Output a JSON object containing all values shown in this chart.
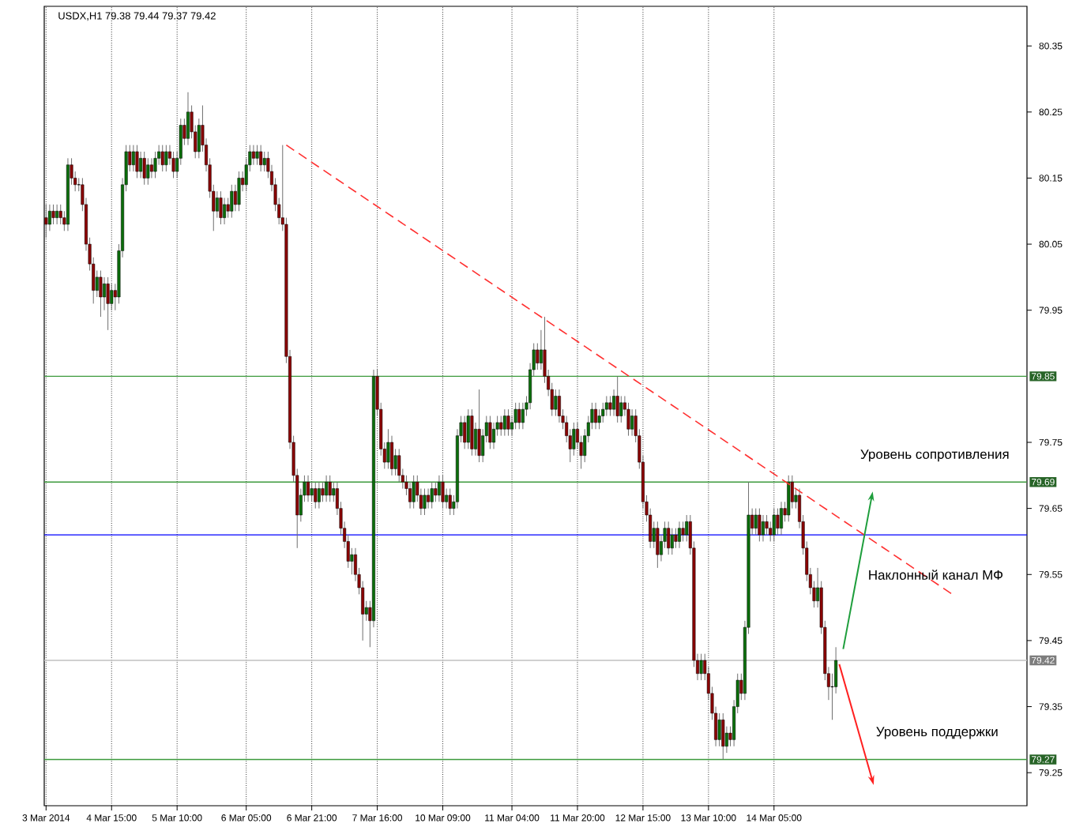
{
  "chart_data": {
    "type": "candlestick",
    "title": "USDX,H1  79.38 79.44 79.37 79.42",
    "categories": [
      "3 Mar 2014",
      null,
      null,
      null,
      null,
      null,
      null,
      null,
      null,
      null,
      null,
      null,
      null,
      null,
      null,
      null,
      null,
      null,
      "4 Mar 15:00",
      null,
      null,
      null,
      null,
      null,
      null,
      null,
      null,
      null,
      null,
      null,
      null,
      null,
      null,
      null,
      null,
      null,
      "5 Mar 10:00",
      null,
      null,
      null,
      null,
      null,
      null,
      null,
      null,
      null,
      null,
      null,
      null,
      null,
      null,
      null,
      null,
      null,
      null,
      "6 Mar 05:00",
      null,
      null,
      null,
      null,
      null,
      null,
      null,
      null,
      null,
      null,
      null,
      null,
      null,
      null,
      null,
      null,
      null,
      "6 Mar 21:00",
      null,
      null,
      null,
      null,
      null,
      null,
      null,
      null,
      null,
      null,
      null,
      null,
      null,
      null,
      null,
      null,
      null,
      "7 Mar 16:00",
      null,
      null,
      null,
      null,
      null,
      null,
      null,
      null,
      null,
      null,
      null,
      null,
      null,
      null,
      null,
      null,
      null,
      "10 Mar 09:00",
      null,
      null,
      null,
      null,
      null,
      null,
      null,
      null,
      null,
      null,
      null,
      null,
      null,
      null,
      null,
      null,
      null,
      null,
      "11 Mar 04:00",
      null,
      null,
      null,
      null,
      null,
      null,
      null,
      null,
      null,
      null,
      null,
      null,
      null,
      null,
      null,
      null,
      null,
      "11 Mar 20:00",
      null,
      null,
      null,
      null,
      null,
      null,
      null,
      null,
      null,
      null,
      null,
      null,
      null,
      null,
      null,
      null,
      null,
      "12 Mar 15:00",
      null,
      null,
      null,
      null,
      null,
      null,
      null,
      null,
      null,
      null,
      null,
      null,
      null,
      null,
      null,
      null,
      null,
      "13 Mar 10:00",
      null,
      null,
      null,
      null,
      null,
      null,
      null,
      null,
      null,
      null,
      null,
      null,
      null,
      null,
      null,
      null,
      null,
      "14 Mar 05:00",
      null,
      null,
      null,
      null,
      null,
      null,
      null,
      null,
      null,
      null,
      null,
      null,
      null,
      null,
      null,
      null,
      null,
      null,
      null,
      null,
      null,
      null,
      null,
      null,
      null,
      null,
      null,
      null,
      null,
      null,
      null,
      null,
      null,
      null,
      null,
      null,
      null,
      null,
      null,
      null,
      null,
      null,
      null,
      null,
      null,
      null,
      null,
      null,
      null,
      null,
      null,
      null,
      null,
      null,
      null,
      null,
      null,
      null,
      null,
      null,
      null,
      null,
      null,
      null,
      null,
      null,
      null,
      null,
      null
    ],
    "ohlc": [
      [
        80.09,
        80.11,
        80.06,
        80.08
      ],
      [
        80.08,
        80.11,
        80.07,
        80.1
      ],
      [
        80.1,
        80.11,
        80.08,
        80.09
      ],
      [
        80.09,
        80.11,
        80.08,
        80.1
      ],
      [
        80.1,
        80.11,
        80.08,
        80.09
      ],
      [
        80.09,
        80.1,
        80.07,
        80.08
      ],
      [
        80.08,
        80.18,
        80.07,
        80.17
      ],
      [
        80.17,
        80.18,
        80.14,
        80.15
      ],
      [
        80.15,
        80.16,
        80.13,
        80.14
      ],
      [
        80.14,
        80.15,
        80.13,
        80.14
      ],
      [
        80.14,
        80.15,
        80.1,
        80.11
      ],
      [
        80.11,
        80.12,
        80.04,
        80.05
      ],
      [
        80.05,
        80.06,
        80.01,
        80.02
      ],
      [
        80.02,
        80.03,
        79.96,
        79.98
      ],
      [
        79.98,
        80.01,
        79.97,
        80.0
      ],
      [
        80.0,
        80.01,
        79.94,
        79.97
      ],
      [
        79.97,
        80.0,
        79.95,
        79.99
      ],
      [
        79.99,
        80.0,
        79.92,
        79.96
      ],
      [
        79.96,
        79.99,
        79.95,
        79.98
      ],
      [
        79.98,
        79.99,
        79.95,
        79.97
      ],
      [
        79.97,
        80.05,
        79.96,
        80.04
      ],
      [
        80.04,
        80.15,
        80.03,
        80.14
      ],
      [
        80.14,
        80.2,
        80.13,
        80.19
      ],
      [
        80.19,
        80.2,
        80.16,
        80.17
      ],
      [
        80.17,
        80.2,
        80.16,
        80.19
      ],
      [
        80.19,
        80.2,
        80.15,
        80.16
      ],
      [
        80.16,
        80.19,
        80.15,
        80.18
      ],
      [
        80.18,
        80.19,
        80.14,
        80.15
      ],
      [
        80.15,
        80.18,
        80.14,
        80.17
      ],
      [
        80.17,
        80.18,
        80.15,
        80.16
      ],
      [
        80.16,
        80.19,
        80.15,
        80.18
      ],
      [
        80.18,
        80.2,
        80.17,
        80.19
      ],
      [
        80.19,
        80.2,
        80.16,
        80.17
      ],
      [
        80.17,
        80.2,
        80.16,
        80.19
      ],
      [
        80.19,
        80.2,
        80.17,
        80.18
      ],
      [
        80.18,
        80.19,
        80.15,
        80.16
      ],
      [
        80.16,
        80.19,
        80.15,
        80.18
      ],
      [
        80.18,
        80.24,
        80.17,
        80.23
      ],
      [
        80.23,
        80.24,
        80.2,
        80.21
      ],
      [
        80.21,
        80.28,
        80.2,
        80.25
      ],
      [
        80.25,
        80.26,
        80.21,
        80.22
      ],
      [
        80.22,
        80.23,
        80.18,
        80.19
      ],
      [
        80.19,
        80.24,
        80.18,
        80.23
      ],
      [
        80.23,
        80.26,
        80.19,
        80.2
      ],
      [
        80.2,
        80.21,
        80.16,
        80.17
      ],
      [
        80.17,
        80.18,
        80.12,
        80.13
      ],
      [
        80.13,
        80.14,
        80.07,
        80.1
      ],
      [
        80.1,
        80.13,
        80.09,
        80.12
      ],
      [
        80.12,
        80.13,
        80.08,
        80.09
      ],
      [
        80.09,
        80.12,
        80.08,
        80.11
      ],
      [
        80.11,
        80.12,
        80.09,
        80.1
      ],
      [
        80.1,
        80.14,
        80.09,
        80.13
      ],
      [
        80.13,
        80.14,
        80.1,
        80.11
      ],
      [
        80.11,
        80.16,
        80.1,
        80.15
      ],
      [
        80.15,
        80.16,
        80.13,
        80.14
      ],
      [
        80.14,
        80.18,
        80.13,
        80.17
      ],
      [
        80.17,
        80.2,
        80.16,
        80.19
      ],
      [
        80.19,
        80.2,
        80.17,
        80.18
      ],
      [
        80.18,
        80.2,
        80.17,
        80.19
      ],
      [
        80.19,
        80.2,
        80.16,
        80.17
      ],
      [
        80.17,
        80.19,
        80.16,
        80.18
      ],
      [
        80.18,
        80.19,
        80.15,
        80.16
      ],
      [
        80.16,
        80.17,
        80.13,
        80.14
      ],
      [
        80.14,
        80.15,
        80.1,
        80.11
      ],
      [
        80.11,
        80.12,
        80.08,
        80.09
      ],
      [
        80.09,
        80.2,
        80.07,
        80.08
      ],
      [
        80.08,
        80.09,
        79.87,
        79.88
      ],
      [
        79.88,
        79.89,
        79.74,
        79.75
      ],
      [
        79.75,
        79.76,
        79.69,
        79.7
      ],
      [
        79.7,
        79.71,
        79.59,
        79.64
      ],
      [
        79.64,
        79.68,
        79.63,
        79.67
      ],
      [
        79.67,
        79.7,
        79.66,
        79.69
      ],
      [
        79.69,
        79.7,
        79.66,
        79.67
      ],
      [
        79.67,
        79.69,
        79.66,
        79.68
      ],
      [
        79.68,
        79.69,
        79.65,
        79.66
      ],
      [
        79.66,
        79.69,
        79.65,
        79.68
      ],
      [
        79.68,
        79.69,
        79.66,
        79.67
      ],
      [
        79.67,
        79.7,
        79.66,
        79.69
      ],
      [
        79.69,
        79.7,
        79.66,
        79.67
      ],
      [
        79.67,
        79.69,
        79.66,
        79.68
      ],
      [
        79.68,
        79.69,
        79.64,
        79.65
      ],
      [
        79.65,
        79.66,
        79.61,
        79.62
      ],
      [
        79.62,
        79.63,
        79.59,
        79.6
      ],
      [
        79.6,
        79.61,
        79.56,
        79.57
      ],
      [
        79.57,
        79.59,
        79.55,
        79.58
      ],
      [
        79.58,
        79.59,
        79.54,
        79.55
      ],
      [
        79.55,
        79.56,
        79.52,
        79.53
      ],
      [
        79.53,
        79.54,
        79.45,
        79.49
      ],
      [
        79.49,
        79.51,
        79.48,
        79.5
      ],
      [
        79.5,
        79.51,
        79.44,
        79.48
      ],
      [
        79.48,
        79.86,
        79.47,
        79.85
      ],
      [
        79.85,
        79.86,
        79.79,
        79.8
      ],
      [
        79.8,
        79.81,
        79.73,
        79.74
      ],
      [
        79.74,
        79.75,
        79.71,
        79.72
      ],
      [
        79.72,
        79.77,
        79.71,
        79.75
      ],
      [
        79.75,
        79.76,
        79.7,
        79.71
      ],
      [
        79.71,
        79.74,
        79.7,
        79.73
      ],
      [
        79.73,
        79.74,
        79.69,
        79.7
      ],
      [
        79.7,
        79.71,
        79.68,
        79.69
      ],
      [
        79.69,
        79.7,
        79.67,
        79.68
      ],
      [
        79.68,
        79.69,
        79.65,
        79.66
      ],
      [
        79.66,
        79.7,
        79.65,
        79.69
      ],
      [
        79.69,
        79.7,
        79.66,
        79.67
      ],
      [
        79.67,
        79.68,
        79.64,
        79.65
      ],
      [
        79.65,
        79.68,
        79.64,
        79.67
      ],
      [
        79.67,
        79.68,
        79.65,
        79.66
      ],
      [
        79.66,
        79.69,
        79.65,
        79.68
      ],
      [
        79.68,
        79.69,
        79.66,
        79.67
      ],
      [
        79.67,
        79.7,
        79.66,
        79.69
      ],
      [
        79.69,
        79.7,
        79.65,
        79.66
      ],
      [
        79.66,
        79.68,
        79.65,
        79.67
      ],
      [
        79.67,
        79.68,
        79.64,
        79.65
      ],
      [
        79.65,
        79.67,
        79.64,
        79.66
      ],
      [
        79.66,
        79.77,
        79.65,
        79.76
      ],
      [
        79.76,
        79.79,
        79.75,
        79.78
      ],
      [
        79.78,
        79.79,
        79.74,
        79.75
      ],
      [
        79.75,
        79.8,
        79.74,
        79.79
      ],
      [
        79.79,
        79.8,
        79.73,
        79.74
      ],
      [
        79.74,
        79.78,
        79.73,
        79.77
      ],
      [
        79.77,
        79.83,
        79.72,
        79.73
      ],
      [
        79.73,
        79.77,
        79.72,
        79.76
      ],
      [
        79.76,
        79.79,
        79.75,
        79.78
      ],
      [
        79.78,
        79.79,
        79.74,
        79.75
      ],
      [
        79.75,
        79.78,
        79.74,
        79.77
      ],
      [
        79.77,
        79.79,
        79.76,
        79.78
      ],
      [
        79.78,
        79.79,
        79.76,
        79.77
      ],
      [
        79.77,
        79.8,
        79.76,
        79.79
      ],
      [
        79.79,
        79.8,
        79.76,
        79.77
      ],
      [
        79.77,
        79.79,
        79.76,
        79.78
      ],
      [
        79.78,
        79.81,
        79.77,
        79.8
      ],
      [
        79.8,
        79.81,
        79.77,
        79.78
      ],
      [
        79.78,
        79.81,
        79.77,
        79.8
      ],
      [
        79.8,
        79.82,
        79.79,
        79.81
      ],
      [
        79.81,
        79.87,
        79.8,
        79.86
      ],
      [
        79.86,
        79.9,
        79.85,
        79.89
      ],
      [
        79.89,
        79.9,
        79.86,
        79.87
      ],
      [
        79.87,
        79.92,
        79.86,
        79.89
      ],
      [
        79.89,
        79.94,
        79.84,
        79.85
      ],
      [
        79.85,
        79.86,
        79.82,
        79.83
      ],
      [
        79.83,
        79.84,
        79.79,
        79.8
      ],
      [
        79.8,
        79.83,
        79.79,
        79.82
      ],
      [
        79.82,
        79.83,
        79.78,
        79.79
      ],
      [
        79.79,
        79.8,
        79.77,
        79.78
      ],
      [
        79.78,
        79.79,
        79.75,
        79.76
      ],
      [
        79.76,
        79.77,
        79.72,
        79.74
      ],
      [
        79.74,
        79.78,
        79.73,
        79.77
      ],
      [
        79.77,
        79.78,
        79.74,
        79.75
      ],
      [
        79.75,
        79.76,
        79.71,
        79.73
      ],
      [
        79.73,
        79.77,
        79.72,
        79.76
      ],
      [
        79.76,
        79.79,
        79.75,
        79.78
      ],
      [
        79.78,
        79.81,
        79.77,
        79.8
      ],
      [
        79.8,
        79.81,
        79.77,
        79.78
      ],
      [
        79.78,
        79.8,
        79.77,
        79.79
      ],
      [
        79.79,
        79.81,
        79.78,
        79.8
      ],
      [
        79.8,
        79.82,
        79.79,
        79.81
      ],
      [
        79.81,
        79.82,
        79.79,
        79.8
      ],
      [
        79.8,
        79.83,
        79.79,
        79.82
      ],
      [
        79.82,
        79.85,
        79.78,
        79.79
      ],
      [
        79.79,
        79.82,
        79.78,
        79.81
      ],
      [
        79.81,
        79.82,
        79.79,
        79.8
      ],
      [
        79.8,
        79.81,
        79.76,
        79.77
      ],
      [
        79.77,
        79.8,
        79.76,
        79.79
      ],
      [
        79.79,
        79.8,
        79.75,
        79.76
      ],
      [
        79.76,
        79.77,
        79.71,
        79.72
      ],
      [
        79.72,
        79.73,
        79.65,
        79.66
      ],
      [
        79.66,
        79.67,
        79.63,
        79.64
      ],
      [
        79.64,
        79.65,
        79.59,
        79.6
      ],
      [
        79.6,
        79.63,
        79.59,
        79.62
      ],
      [
        79.62,
        79.63,
        79.56,
        79.58
      ],
      [
        79.58,
        79.61,
        79.57,
        79.6
      ],
      [
        79.6,
        79.63,
        79.59,
        79.62
      ],
      [
        79.62,
        79.63,
        79.58,
        79.59
      ],
      [
        79.59,
        79.62,
        79.58,
        79.61
      ],
      [
        79.61,
        79.62,
        79.59,
        79.6
      ],
      [
        79.6,
        79.63,
        79.59,
        79.62
      ],
      [
        79.62,
        79.63,
        79.6,
        79.61
      ],
      [
        79.61,
        79.64,
        79.6,
        79.63
      ],
      [
        79.63,
        79.64,
        79.58,
        79.59
      ],
      [
        79.59,
        79.6,
        79.41,
        79.42
      ],
      [
        79.42,
        79.43,
        79.39,
        79.4
      ],
      [
        79.4,
        79.43,
        79.39,
        79.42
      ],
      [
        79.42,
        79.43,
        79.39,
        79.4
      ],
      [
        79.4,
        79.41,
        79.36,
        79.37
      ],
      [
        79.37,
        79.38,
        79.33,
        79.34
      ],
      [
        79.34,
        79.35,
        79.29,
        79.3
      ],
      [
        79.3,
        79.34,
        79.29,
        79.33
      ],
      [
        79.33,
        79.34,
        79.27,
        79.29
      ],
      [
        79.29,
        79.32,
        79.28,
        79.31
      ],
      [
        79.31,
        79.32,
        79.29,
        79.3
      ],
      [
        79.3,
        79.36,
        79.29,
        79.35
      ],
      [
        79.35,
        79.4,
        79.34,
        79.39
      ],
      [
        79.39,
        79.4,
        79.36,
        79.37
      ],
      [
        79.37,
        79.48,
        79.36,
        79.47
      ],
      [
        79.47,
        79.69,
        79.46,
        79.64
      ],
      [
        79.64,
        79.65,
        79.61,
        79.62
      ],
      [
        79.62,
        79.65,
        79.61,
        79.64
      ],
      [
        79.64,
        79.65,
        79.6,
        79.61
      ],
      [
        79.61,
        79.64,
        79.6,
        79.63
      ],
      [
        79.63,
        79.64,
        79.61,
        79.62
      ],
      [
        79.62,
        79.63,
        79.6,
        79.61
      ],
      [
        79.61,
        79.65,
        79.6,
        79.64
      ],
      [
        79.64,
        79.65,
        79.61,
        79.62
      ],
      [
        79.62,
        79.66,
        79.61,
        79.65
      ],
      [
        79.65,
        79.66,
        79.63,
        79.64
      ],
      [
        79.64,
        79.7,
        79.63,
        79.69
      ],
      [
        79.69,
        79.7,
        79.65,
        79.66
      ],
      [
        79.66,
        79.68,
        79.65,
        79.67
      ],
      [
        79.67,
        79.68,
        79.62,
        79.63
      ],
      [
        79.63,
        79.64,
        79.58,
        79.59
      ],
      [
        79.59,
        79.6,
        79.54,
        79.55
      ],
      [
        79.55,
        79.56,
        79.52,
        79.53
      ],
      [
        79.53,
        79.54,
        79.5,
        79.51
      ],
      [
        79.51,
        79.56,
        79.5,
        79.53
      ],
      [
        79.53,
        79.54,
        79.46,
        79.47
      ],
      [
        79.47,
        79.48,
        79.39,
        79.4
      ],
      [
        79.4,
        79.41,
        79.36,
        79.38
      ],
      [
        79.38,
        79.4,
        79.33,
        79.38
      ],
      [
        79.38,
        79.44,
        79.37,
        79.42
      ],
      null,
      null,
      null,
      null,
      null,
      null,
      null,
      null,
      null,
      null,
      null,
      null,
      null,
      null,
      null,
      null,
      null,
      null,
      null,
      null,
      null,
      null,
      null,
      null,
      null,
      null,
      null,
      null,
      null,
      null,
      null,
      null,
      null,
      null,
      null,
      null,
      null,
      null,
      null,
      null,
      null,
      null,
      null,
      null,
      null,
      null,
      null,
      null,
      null,
      null,
      null,
      null
    ],
    "series": [
      {
        "type": "line",
        "color": "#ff3030",
        "line_style": "dashed",
        "values": [
          null,
          null,
          null,
          null,
          null,
          null,
          null,
          null,
          null,
          null,
          null,
          null,
          null,
          null,
          null,
          null,
          null,
          null,
          null,
          null,
          null,
          null,
          null,
          null,
          null,
          null,
          null,
          null,
          null,
          null,
          null,
          null,
          null,
          null,
          null,
          null,
          null,
          null,
          null,
          null,
          null,
          null,
          null,
          null,
          null,
          null,
          null,
          null,
          null,
          null,
          null,
          null,
          null,
          null,
          null,
          null,
          null,
          null,
          null,
          null,
          null,
          null,
          null,
          null,
          null,
          null,
          80.2,
          null,
          null,
          null,
          null,
          null,
          null,
          null,
          null,
          null,
          null,
          null,
          null,
          null,
          null,
          null,
          null,
          null,
          null,
          null,
          null,
          null,
          null,
          null,
          null,
          null,
          null,
          null,
          null,
          null,
          null,
          null,
          null,
          null,
          null,
          null,
          null,
          null,
          null,
          null,
          null,
          null,
          null,
          null,
          null,
          null,
          null,
          null,
          null,
          null,
          null,
          null,
          null,
          null,
          null,
          null,
          null,
          null,
          null,
          null,
          null,
          null,
          null,
          null,
          null,
          null,
          null,
          null,
          null,
          null,
          null,
          null,
          null,
          null,
          null,
          null,
          null,
          null,
          null,
          null,
          null,
          null,
          null,
          null,
          null,
          null,
          null,
          null,
          null,
          null,
          null,
          null,
          null,
          null,
          null,
          null,
          null,
          null,
          null,
          null,
          null,
          null,
          null,
          null,
          null,
          null,
          null,
          null,
          null,
          null,
          null,
          null,
          null,
          null,
          null,
          null,
          null,
          null,
          null,
          null,
          null,
          null,
          null,
          null,
          null,
          null,
          null,
          null,
          null,
          null,
          null,
          null,
          null,
          null,
          null,
          null,
          null,
          null,
          null,
          null,
          null,
          null,
          null,
          null,
          null,
          null,
          null,
          null,
          null,
          null,
          null,
          null,
          null,
          null,
          null,
          null,
          null,
          null,
          null,
          null,
          null,
          null,
          null,
          null,
          null,
          null,
          null,
          null,
          null,
          null,
          null,
          null,
          null,
          null,
          null,
          null,
          null,
          null,
          null,
          null,
          null,
          null,
          null,
          79.52,
          null,
          null,
          null,
          null,
          null,
          null,
          null,
          null,
          null,
          null,
          null,
          null,
          null,
          null,
          null,
          null,
          null,
          null,
          null,
          null
        ]
      }
    ],
    "ylim": [
      79.2,
      80.41
    ],
    "yticks": [
      79.25,
      79.35,
      79.45,
      79.55,
      79.65,
      79.75,
      79.95,
      80.05,
      80.15,
      80.25,
      80.35
    ],
    "grid": "x",
    "ref_lines": [
      {
        "axis": "y",
        "value": 79.85,
        "label": "79.85",
        "color": "#3c9a3c"
      },
      {
        "axis": "y",
        "value": 79.69,
        "label": "79.69",
        "color": "#3c9a3c"
      },
      {
        "axis": "y",
        "value": 79.61,
        "color": "#0000ff"
      },
      {
        "axis": "y",
        "value": 79.42,
        "label": "79.42",
        "color": "#c0c0c0"
      },
      {
        "axis": "y",
        "value": 79.27,
        "label": "79.27",
        "color": "#3c9a3c"
      }
    ],
    "annotations": [
      "Уровень сопротивления",
      "Наклонный канал МФ",
      "Уровень поддержки"
    ]
  }
}
